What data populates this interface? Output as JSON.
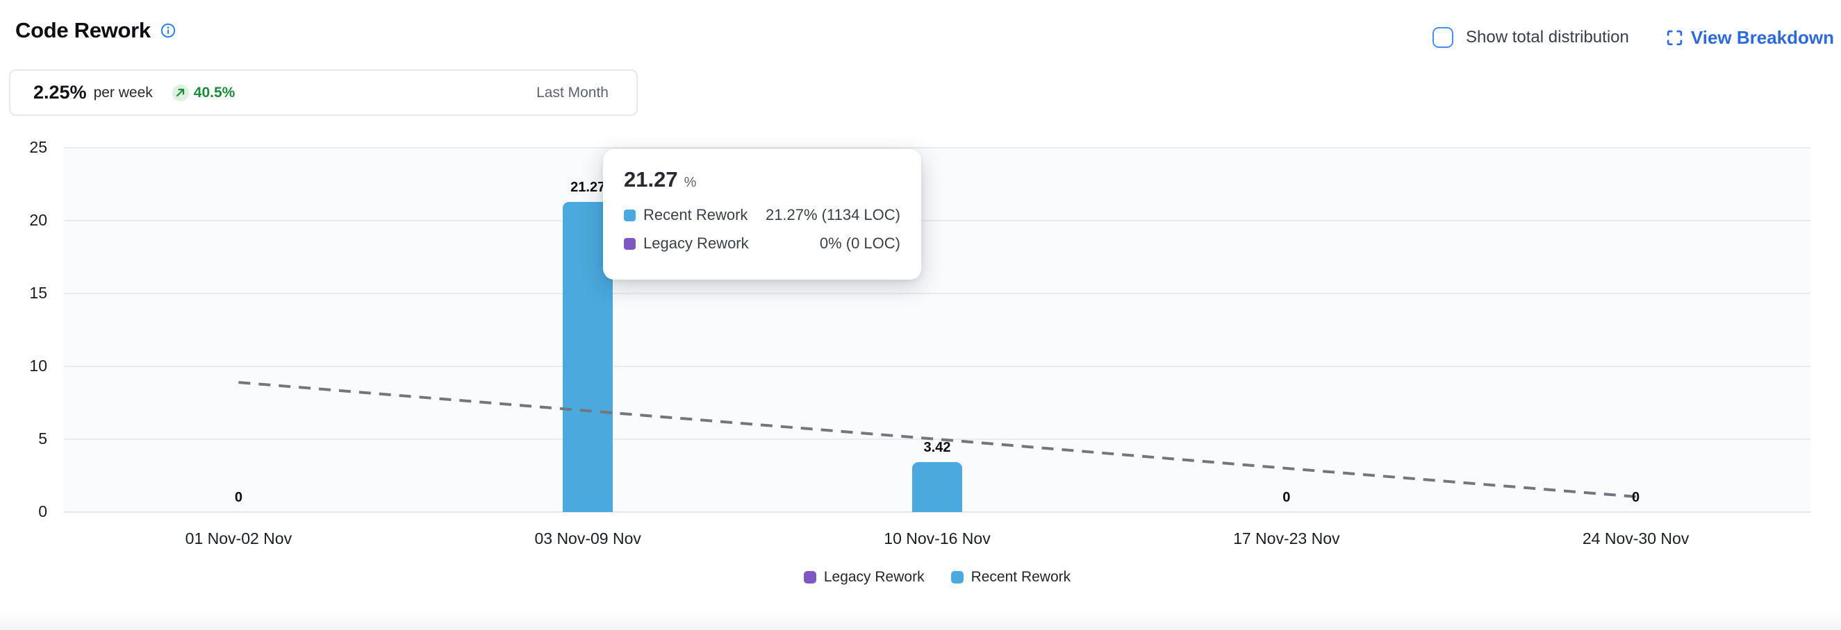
{
  "header": {
    "title": "Code Rework"
  },
  "controls": {
    "show_total_label": "Show total distribution",
    "checkbox_checked": false,
    "view_breakdown_label": "View Breakdown"
  },
  "stat_card": {
    "value": "2.25%",
    "unit": "per week",
    "delta": "40.5%",
    "delta_direction": "up",
    "period": "Last Month"
  },
  "colors": {
    "recent_rework": "#4BA9DD",
    "legacy_rework": "#7E57C2",
    "trend": "#72777d",
    "accent_blue": "#2e6ad7",
    "delta_green": "#1b8a3c"
  },
  "chart_data": {
    "type": "bar",
    "categories": [
      "01 Nov-02 Nov",
      "03 Nov-09 Nov",
      "10 Nov-16 Nov",
      "17 Nov-23 Nov",
      "24 Nov-30 Nov"
    ],
    "series": [
      {
        "name": "Legacy Rework",
        "color": "#7E57C2",
        "values": [
          0,
          0,
          0,
          0,
          0
        ]
      },
      {
        "name": "Recent Rework",
        "color": "#4BA9DD",
        "values": [
          0,
          21.27,
          3.42,
          0,
          0
        ]
      }
    ],
    "bar_labels": [
      "0",
      "21.27",
      "3.42",
      "0",
      "0"
    ],
    "trend_line": {
      "style": "dashed",
      "color": "#72777d",
      "values": [
        8.9,
        6.95,
        5.0,
        3.0,
        1.05
      ]
    },
    "ylabel": "",
    "xlabel": "",
    "ylim": [
      0,
      25
    ],
    "yticks": [
      0,
      5,
      10,
      15,
      20,
      25
    ],
    "grid": "horizontal",
    "legend_position": "bottom"
  },
  "tooltip": {
    "title": "21.27",
    "title_unit": "%",
    "rows": [
      {
        "label": "Recent Rework",
        "value": "21.27% (1134 LOC)",
        "color": "#4BA9DD"
      },
      {
        "label": "Legacy Rework",
        "value": "0% (0 LOC)",
        "color": "#7E57C2"
      }
    ]
  }
}
